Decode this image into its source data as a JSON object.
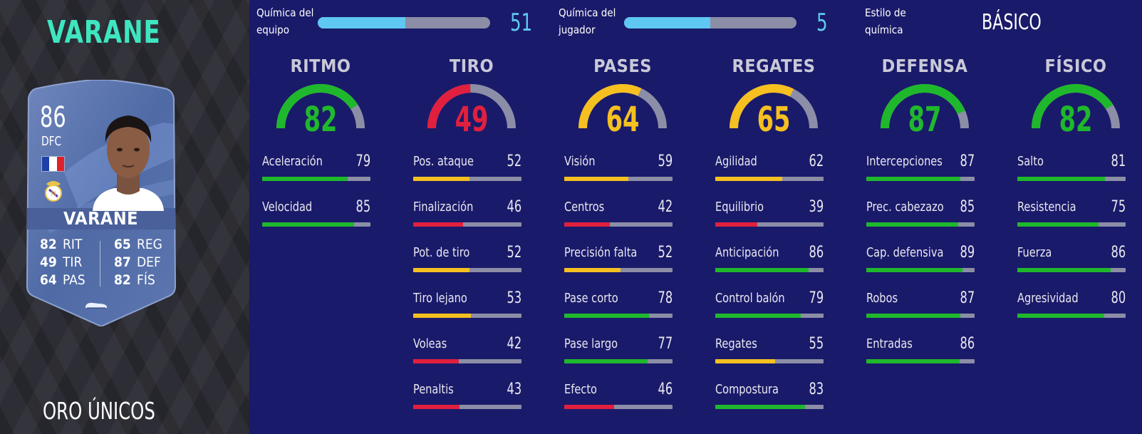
{
  "player": {
    "title": "VARANE",
    "version": "ORO ÚNICOS",
    "card": {
      "rating": "86",
      "position": "DFC",
      "name": "VARANE",
      "stats_left": [
        {
          "value": "82",
          "label": "RIT"
        },
        {
          "value": "49",
          "label": "TIR"
        },
        {
          "value": "64",
          "label": "PAS"
        }
      ],
      "stats_right": [
        {
          "value": "65",
          "label": "REG"
        },
        {
          "value": "87",
          "label": "DEF"
        },
        {
          "value": "82",
          "label": "FÍS"
        }
      ],
      "flag_colors": [
        "#1f3fa8",
        "#ffffff",
        "#e0202c"
      ],
      "card_color": "#5a72a8",
      "club_icon": "real-madrid-crest-icon",
      "boot_icon": "boot-icon"
    }
  },
  "chemistry": {
    "team_label": "Química del equipo",
    "team_value": "51",
    "team_fill_fraction": 0.51,
    "player_label": "Química del jugador",
    "player_value": "5",
    "player_fill_fraction": 0.5,
    "style_label": "Estilo de química",
    "style_value": "BÁSICO"
  },
  "colors": {
    "green": "#1fb82c",
    "red": "#e0203e",
    "yellow": "#f5c020",
    "track": "#8b8ea6",
    "chem_blue": "#5fc8f2",
    "background": "#1a1a6a",
    "title_accent": "#3ee6c0"
  },
  "categories": [
    {
      "title": "RITMO",
      "value": 82,
      "color": "green",
      "stats": [
        {
          "name": "Aceleración",
          "value": 79,
          "color": "green"
        },
        {
          "name": "Velocidad",
          "value": 85,
          "color": "green"
        }
      ]
    },
    {
      "title": "TIRO",
      "value": 49,
      "color": "red",
      "stats": [
        {
          "name": "Pos. ataque",
          "value": 52,
          "color": "yellow"
        },
        {
          "name": "Finalización",
          "value": 46,
          "color": "red"
        },
        {
          "name": "Pot. de tiro",
          "value": 52,
          "color": "yellow"
        },
        {
          "name": "Tiro lejano",
          "value": 53,
          "color": "yellow"
        },
        {
          "name": "Voleas",
          "value": 42,
          "color": "red"
        },
        {
          "name": "Penaltis",
          "value": 43,
          "color": "red"
        }
      ]
    },
    {
      "title": "PASES",
      "value": 64,
      "color": "yellow",
      "stats": [
        {
          "name": "Visión",
          "value": 59,
          "color": "yellow"
        },
        {
          "name": "Centros",
          "value": 42,
          "color": "red"
        },
        {
          "name": "Precisión falta",
          "value": 52,
          "color": "yellow"
        },
        {
          "name": "Pase corto",
          "value": 78,
          "color": "green"
        },
        {
          "name": "Pase largo",
          "value": 77,
          "color": "green"
        },
        {
          "name": "Efecto",
          "value": 46,
          "color": "red"
        }
      ]
    },
    {
      "title": "REGATES",
      "value": 65,
      "color": "yellow",
      "stats": [
        {
          "name": "Agilidad",
          "value": 62,
          "color": "yellow"
        },
        {
          "name": "Equilibrio",
          "value": 39,
          "color": "red"
        },
        {
          "name": "Anticipación",
          "value": 86,
          "color": "green"
        },
        {
          "name": "Control balón",
          "value": 79,
          "color": "green"
        },
        {
          "name": "Regates",
          "value": 55,
          "color": "yellow"
        },
        {
          "name": "Compostura",
          "value": 83,
          "color": "green"
        }
      ]
    },
    {
      "title": "DEFENSA",
      "value": 87,
      "color": "green",
      "stats": [
        {
          "name": "Intercepciones",
          "value": 87,
          "color": "green"
        },
        {
          "name": "Prec. cabezazo",
          "value": 85,
          "color": "green"
        },
        {
          "name": "Cap. defensiva",
          "value": 89,
          "color": "green"
        },
        {
          "name": "Robos",
          "value": 87,
          "color": "green"
        },
        {
          "name": "Entradas",
          "value": 86,
          "color": "green"
        }
      ]
    },
    {
      "title": "FÍSICO",
      "value": 82,
      "color": "green",
      "stats": [
        {
          "name": "Salto",
          "value": 81,
          "color": "green"
        },
        {
          "name": "Resistencia",
          "value": 75,
          "color": "green"
        },
        {
          "name": "Fuerza",
          "value": 86,
          "color": "green"
        },
        {
          "name": "Agresividad",
          "value": 80,
          "color": "green"
        }
      ]
    }
  ]
}
